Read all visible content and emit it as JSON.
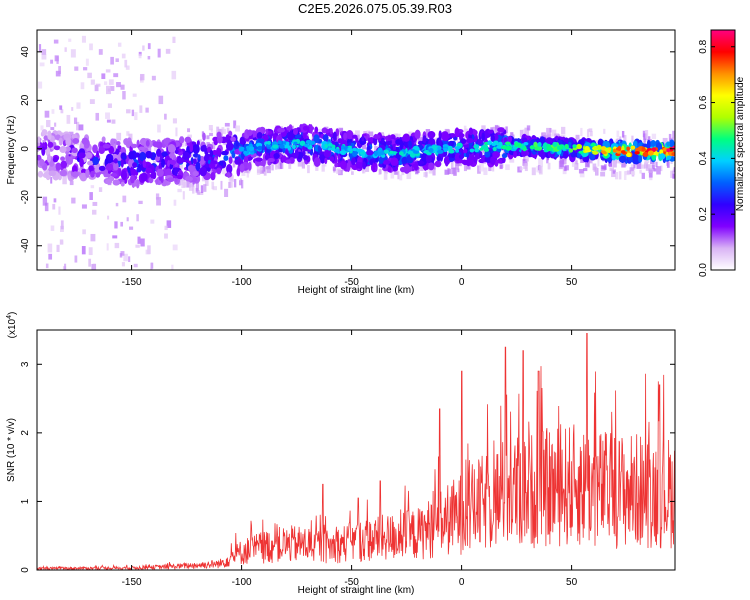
{
  "title": "C2E5.2026.075.05.39.R03",
  "chart_data": [
    {
      "type": "heatmap",
      "xlabel": "Height of straight line (km)",
      "ylabel": "Frequency (Hz)",
      "xlim": [
        -193,
        97
      ],
      "ylim": [
        -50,
        49
      ],
      "xticks": [
        -150,
        -100,
        -50,
        0,
        50
      ],
      "yticks": [
        -40,
        -20,
        0,
        20,
        40
      ],
      "colorbar": {
        "label": "Normalized spectral amplitude",
        "range": [
          0,
          0.86
        ],
        "ticks": [
          0.0,
          0.2,
          0.4,
          0.6,
          0.8
        ],
        "colors": [
          "#ffffff",
          "#d9b3f5",
          "#8000ff",
          "#3000ff",
          "#0060ff",
          "#00d0ff",
          "#00ff80",
          "#b0ff00",
          "#ffff00",
          "#ff9000",
          "#ff0000",
          "#ff0080"
        ]
      },
      "ridge": [
        {
          "x": -190,
          "y": -2,
          "amp": 0.2
        },
        {
          "x": -170,
          "y": -4,
          "amp": 0.25
        },
        {
          "x": -150,
          "y": -6,
          "amp": 0.3
        },
        {
          "x": -130,
          "y": -5,
          "amp": 0.3
        },
        {
          "x": -110,
          "y": -3,
          "amp": 0.35
        },
        {
          "x": -90,
          "y": 1,
          "amp": 0.38
        },
        {
          "x": -70,
          "y": 2,
          "amp": 0.4
        },
        {
          "x": -50,
          "y": -1,
          "amp": 0.4
        },
        {
          "x": -30,
          "y": -2,
          "amp": 0.4
        },
        {
          "x": -10,
          "y": 0,
          "amp": 0.4
        },
        {
          "x": 10,
          "y": 1,
          "amp": 0.42
        },
        {
          "x": 30,
          "y": 1,
          "amp": 0.45
        },
        {
          "x": 50,
          "y": 0,
          "amp": 0.5
        },
        {
          "x": 70,
          "y": -1,
          "amp": 0.7
        },
        {
          "x": 95,
          "y": -1,
          "amp": 0.8
        }
      ]
    },
    {
      "type": "line",
      "xlabel": "Height of straight line (km)",
      "ylabel": "SNR (10 * v/v)",
      "yscale_label": "(x10",
      "yscale_exp": "4",
      "xlim": [
        -193,
        97
      ],
      "ylim": [
        0,
        3.5
      ],
      "xticks": [
        -150,
        -100,
        -50,
        0,
        50
      ],
      "yticks": [
        0,
        1,
        2,
        3
      ],
      "color": "#ee3333",
      "envelope": [
        {
          "x": -193,
          "y": 0.03
        },
        {
          "x": -150,
          "y": 0.04
        },
        {
          "x": -130,
          "y": 0.07
        },
        {
          "x": -110,
          "y": 0.12
        },
        {
          "x": -100,
          "y": 0.35
        },
        {
          "x": -90,
          "y": 0.45
        },
        {
          "x": -80,
          "y": 0.5
        },
        {
          "x": -70,
          "y": 0.5
        },
        {
          "x": -60,
          "y": 0.45
        },
        {
          "x": -50,
          "y": 0.55
        },
        {
          "x": -40,
          "y": 0.6
        },
        {
          "x": -30,
          "y": 0.65
        },
        {
          "x": -20,
          "y": 0.7
        },
        {
          "x": -10,
          "y": 0.9
        },
        {
          "x": 0,
          "y": 1.1
        },
        {
          "x": 10,
          "y": 1.3
        },
        {
          "x": 20,
          "y": 1.5
        },
        {
          "x": 30,
          "y": 1.55
        },
        {
          "x": 40,
          "y": 1.6
        },
        {
          "x": 50,
          "y": 1.65
        },
        {
          "x": 60,
          "y": 1.6
        },
        {
          "x": 70,
          "y": 1.55
        },
        {
          "x": 80,
          "y": 1.55
        },
        {
          "x": 97,
          "y": 1.5
        }
      ],
      "peaks": [
        {
          "x": -63,
          "y": 1.25
        },
        {
          "x": -47,
          "y": 1.05
        },
        {
          "x": -37,
          "y": 1.3
        },
        {
          "x": -10,
          "y": 2.35
        },
        {
          "x": 0,
          "y": 2.9
        },
        {
          "x": 20,
          "y": 3.25
        },
        {
          "x": 28,
          "y": 3.2
        },
        {
          "x": 35,
          "y": 2.9
        },
        {
          "x": 57,
          "y": 3.45
        },
        {
          "x": 90,
          "y": 2.7
        }
      ]
    }
  ]
}
